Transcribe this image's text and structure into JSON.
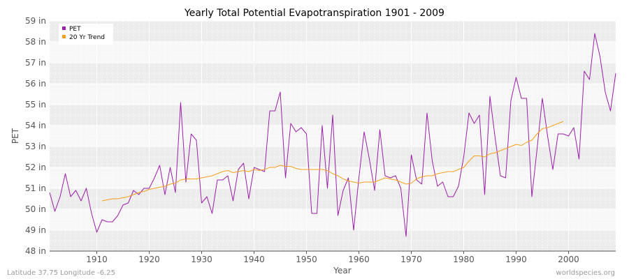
{
  "chart_data": {
    "type": "line",
    "title": "Yearly Total Potential Evapotranspiration 1901 - 2009",
    "xlabel": "Year",
    "ylabel": "PET",
    "xlim": [
      1901,
      2009
    ],
    "ylim": [
      48,
      59
    ],
    "x_ticks": [
      1910,
      1920,
      1930,
      1940,
      1950,
      1960,
      1970,
      1980,
      1990,
      2000
    ],
    "y_ticks": [
      48,
      49,
      50,
      51,
      52,
      53,
      54,
      55,
      56,
      57,
      58,
      59
    ],
    "y_tick_labels": [
      "48 in",
      "49 in",
      "50 in",
      "51 in",
      "52 in",
      "53 in",
      "54 in",
      "55 in",
      "56 in",
      "57 in",
      "58 in",
      "59 in"
    ],
    "grid": true,
    "legend_position": "top-left",
    "series": [
      {
        "name": "PET",
        "color": "#9b1fa8",
        "x": [
          1901,
          1902,
          1903,
          1904,
          1905,
          1906,
          1907,
          1908,
          1909,
          1910,
          1911,
          1912,
          1913,
          1914,
          1915,
          1916,
          1917,
          1918,
          1919,
          1920,
          1921,
          1922,
          1923,
          1924,
          1925,
          1926,
          1927,
          1928,
          1929,
          1930,
          1931,
          1932,
          1933,
          1934,
          1935,
          1936,
          1937,
          1938,
          1939,
          1940,
          1941,
          1942,
          1943,
          1944,
          1945,
          1946,
          1947,
          1948,
          1949,
          1950,
          1951,
          1952,
          1953,
          1954,
          1955,
          1956,
          1957,
          1958,
          1959,
          1960,
          1961,
          1962,
          1963,
          1964,
          1965,
          1966,
          1967,
          1968,
          1969,
          1970,
          1971,
          1972,
          1973,
          1974,
          1975,
          1976,
          1977,
          1978,
          1979,
          1980,
          1981,
          1982,
          1983,
          1984,
          1985,
          1986,
          1987,
          1988,
          1989,
          1990,
          1991,
          1992,
          1993,
          1994,
          1995,
          1996,
          1997,
          1998,
          1999,
          2000,
          2001,
          2002,
          2003,
          2004,
          2005,
          2006,
          2007,
          2008,
          2009
        ],
        "values": [
          50.8,
          49.9,
          50.6,
          51.7,
          50.6,
          50.9,
          50.4,
          51.0,
          49.8,
          48.9,
          49.5,
          49.4,
          49.4,
          49.7,
          50.2,
          50.3,
          50.9,
          50.7,
          51.0,
          51.0,
          51.5,
          52.1,
          50.7,
          52.0,
          50.8,
          55.1,
          51.3,
          53.6,
          53.3,
          50.3,
          50.6,
          49.8,
          51.4,
          51.4,
          51.6,
          50.4,
          51.9,
          52.2,
          50.5,
          52.0,
          51.9,
          51.8,
          54.7,
          54.7,
          55.6,
          51.5,
          54.1,
          53.7,
          53.9,
          53.6,
          49.8,
          49.8,
          54.0,
          51.0,
          54.5,
          49.7,
          50.9,
          51.5,
          49.0,
          51.5,
          53.7,
          52.4,
          50.9,
          53.8,
          51.6,
          51.5,
          51.6,
          51.0,
          48.7,
          52.6,
          51.4,
          51.2,
          54.6,
          52.3,
          51.1,
          51.3,
          50.6,
          50.6,
          51.1,
          52.5,
          54.6,
          54.1,
          54.5,
          50.7,
          55.4,
          53.4,
          51.6,
          51.5,
          55.2,
          56.3,
          55.3,
          55.3,
          50.6,
          52.9,
          55.3,
          53.5,
          51.9,
          53.6,
          53.6,
          53.5,
          53.9,
          52.4,
          56.6,
          56.2,
          58.4,
          57.3,
          55.6,
          54.7,
          56.5
        ]
      },
      {
        "name": "20 Yr Trend",
        "color": "#f5a01a",
        "x": [
          1911,
          1912,
          1913,
          1914,
          1915,
          1916,
          1917,
          1918,
          1919,
          1920,
          1921,
          1922,
          1923,
          1924,
          1925,
          1926,
          1927,
          1928,
          1929,
          1930,
          1931,
          1932,
          1933,
          1934,
          1935,
          1936,
          1937,
          1938,
          1939,
          1940,
          1941,
          1942,
          1943,
          1944,
          1945,
          1946,
          1947,
          1948,
          1949,
          1950,
          1951,
          1952,
          1953,
          1954,
          1955,
          1956,
          1957,
          1958,
          1959,
          1960,
          1961,
          1962,
          1963,
          1964,
          1965,
          1966,
          1967,
          1968,
          1969,
          1970,
          1971,
          1972,
          1973,
          1974,
          1975,
          1976,
          1977,
          1978,
          1979,
          1980,
          1981,
          1982,
          1983,
          1984,
          1985,
          1986,
          1987,
          1988,
          1989,
          1990,
          1991,
          1992,
          1993,
          1994,
          1995,
          1996,
          1997,
          1998,
          1999
        ],
        "values": [
          50.4,
          50.45,
          50.5,
          50.5,
          50.55,
          50.6,
          50.7,
          50.8,
          50.85,
          50.95,
          51.0,
          51.05,
          51.1,
          51.2,
          51.25,
          51.4,
          51.45,
          51.45,
          51.45,
          51.5,
          51.55,
          51.6,
          51.7,
          51.8,
          51.85,
          51.75,
          51.8,
          51.85,
          51.8,
          51.9,
          51.85,
          51.9,
          52.0,
          52.0,
          52.1,
          52.05,
          52.05,
          51.95,
          51.9,
          51.9,
          51.9,
          51.9,
          51.9,
          51.85,
          51.7,
          51.6,
          51.45,
          51.35,
          51.3,
          51.25,
          51.3,
          51.3,
          51.3,
          51.4,
          51.5,
          51.45,
          51.4,
          51.3,
          51.2,
          51.25,
          51.45,
          51.55,
          51.6,
          51.6,
          51.7,
          51.75,
          51.8,
          51.8,
          51.9,
          52.0,
          52.3,
          52.55,
          52.55,
          52.5,
          52.65,
          52.7,
          52.8,
          52.9,
          53.0,
          53.1,
          53.05,
          53.2,
          53.3,
          53.6,
          53.85,
          53.9,
          54.0,
          54.1,
          54.2
        ]
      }
    ]
  },
  "footer": {
    "location": "Latitude 37.75 Longitude -6.25",
    "source": "worldspecies.org"
  },
  "colors": {
    "band_light": "#f7f7f7",
    "band_dark": "#ececec",
    "grid": "#ffffff",
    "axis": "#555555"
  }
}
